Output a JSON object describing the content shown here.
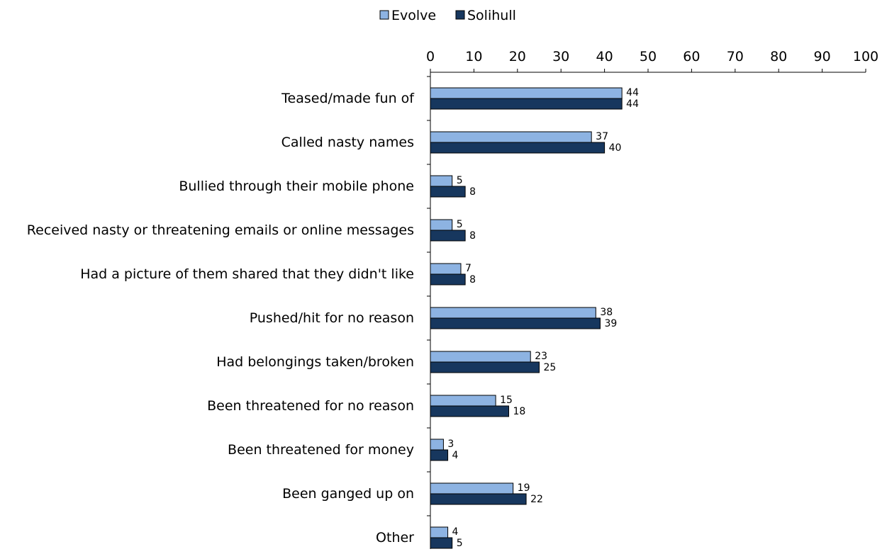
{
  "chart_data": {
    "type": "bar",
    "orientation": "horizontal",
    "categories": [
      "Teased/made fun of",
      "Called nasty names",
      "Bullied through their mobile phone",
      "Received nasty or threatening emails or online messages",
      "Had a picture of them shared that they didn't like",
      "Pushed/hit for no reason",
      "Had belongings taken/broken",
      "Been threatened for no reason",
      "Been threatened for money",
      "Been ganged up on",
      "Other"
    ],
    "series": [
      {
        "name": "Evolve",
        "values": [
          44,
          37,
          5,
          5,
          7,
          38,
          23,
          15,
          3,
          19,
          4
        ],
        "color": "#8DB3E2"
      },
      {
        "name": "Solihull",
        "values": [
          44,
          40,
          8,
          8,
          8,
          39,
          25,
          18,
          4,
          22,
          5
        ],
        "color": "#17375E"
      }
    ],
    "xticks": [
      0,
      10,
      20,
      30,
      40,
      50,
      60,
      70,
      80,
      90,
      100
    ],
    "xlim": [
      0,
      100
    ],
    "xaxis_position": "top",
    "legend_position": "top",
    "grid": false,
    "data_labels": true
  }
}
